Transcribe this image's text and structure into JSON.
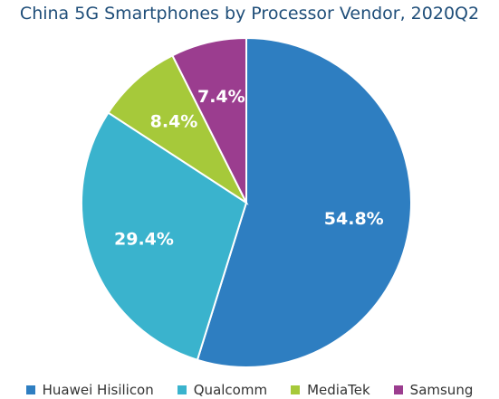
{
  "chart_data": {
    "type": "pie",
    "title": "China 5G Smartphones by Processor Vendor, 2020Q2",
    "categories": [
      "Huawei Hisilicon",
      "Qualcomm",
      "MediaTek",
      "Samsung"
    ],
    "values": [
      54.8,
      29.4,
      8.4,
      7.4
    ],
    "labels": [
      "54.8%",
      "29.4%",
      "8.4%",
      "7.4%"
    ],
    "colors": [
      "#2e7ec1",
      "#3ab3cd",
      "#a6c93a",
      "#9b3d8f"
    ],
    "legend_position": "bottom",
    "start_angle": "12 o'clock",
    "direction": "clockwise"
  }
}
